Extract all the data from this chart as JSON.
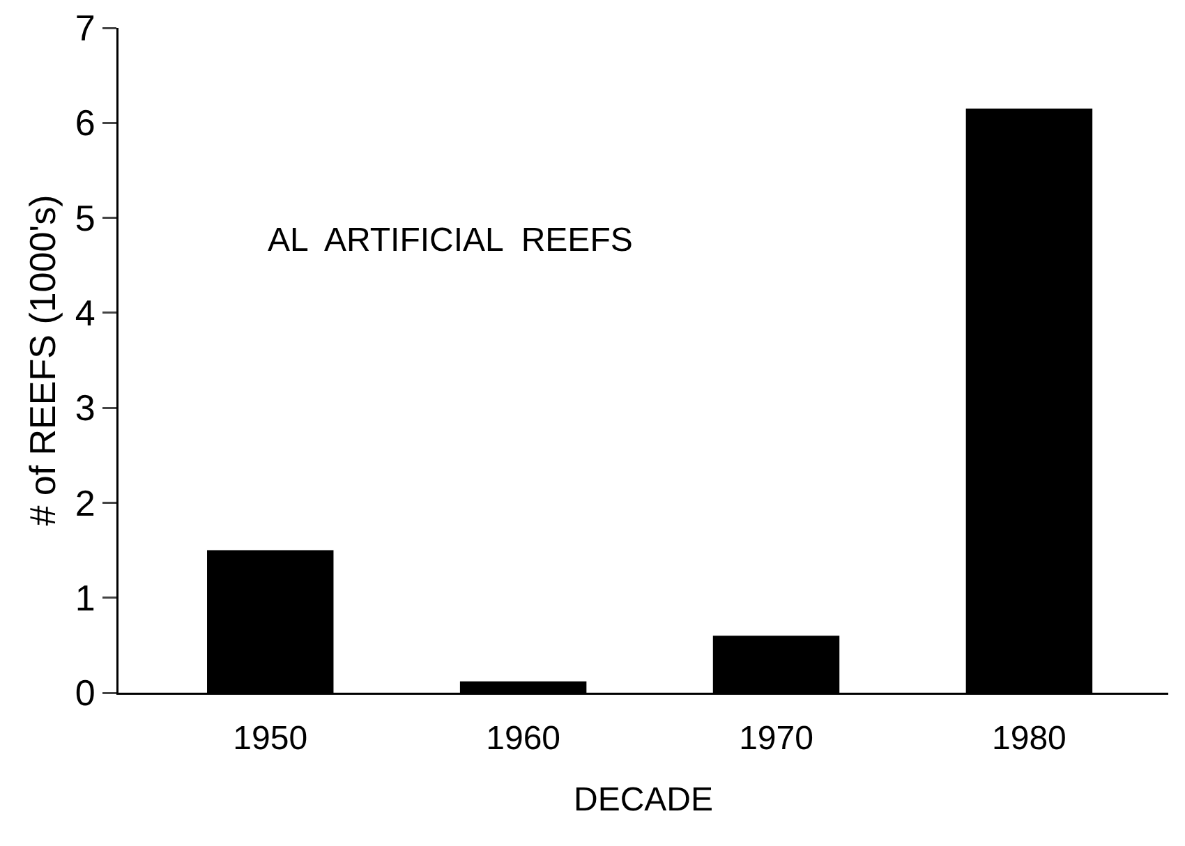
{
  "chart_data": {
    "type": "bar",
    "categories": [
      "1950",
      "1960",
      "1970",
      "1980"
    ],
    "values": [
      1.5,
      0.12,
      0.6,
      6.15
    ],
    "color": "#000000",
    "xlabel": "DECADE",
    "ylabel": "# of REEFS (1000's)",
    "annotations": [
      "AL  ARTIFICIAL  REEFS"
    ],
    "ylim": [
      0,
      7
    ],
    "yticks": [
      0,
      1,
      2,
      3,
      4,
      5,
      6,
      7
    ],
    "grid": false
  }
}
